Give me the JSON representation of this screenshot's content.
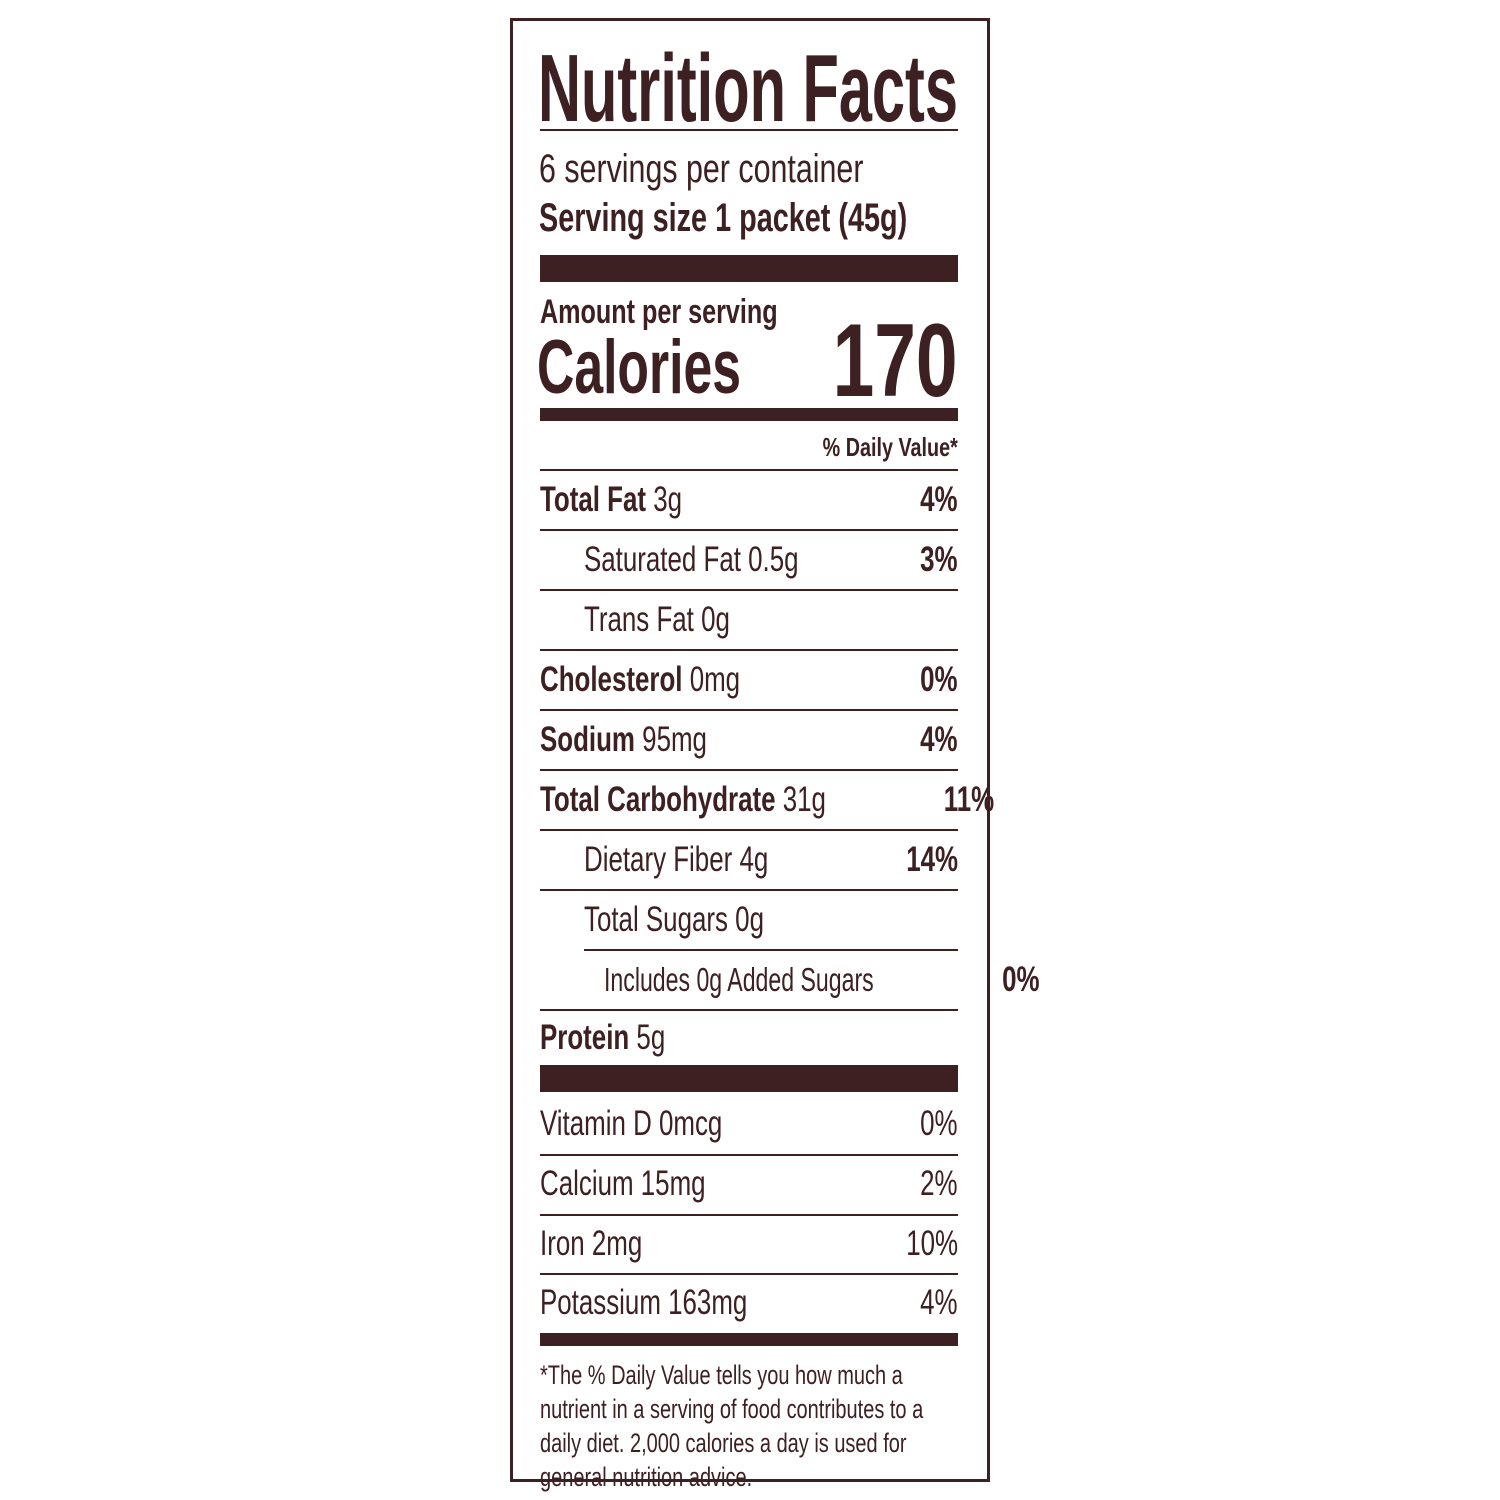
{
  "label": {
    "title": "Nutrition Facts",
    "servings_per_container": "6 servings per container",
    "serving_size_label": "Serving size",
    "serving_size_value": "1 packet (45g)",
    "amount_per_serving": "Amount per serving",
    "calories_label": "Calories",
    "calories_value": "170",
    "daily_value_header": "% Daily Value*",
    "nutrients": [
      {
        "name": "Total Fat",
        "amount": "3g",
        "dv": "4%"
      },
      {
        "name": "Saturated Fat",
        "amount": "0.5g",
        "dv": "3%"
      },
      {
        "name": "Trans Fat",
        "amount": "0g",
        "dv": ""
      },
      {
        "name": "Cholesterol",
        "amount": "0mg",
        "dv": "0%"
      },
      {
        "name": "Sodium",
        "amount": "95mg",
        "dv": "4%"
      },
      {
        "name": "Total Carbohydrate",
        "amount": "31g",
        "dv": "11%"
      },
      {
        "name": "Dietary Fiber",
        "amount": "4g",
        "dv": "14%"
      },
      {
        "name": "Total Sugars",
        "amount": "0g",
        "dv": ""
      },
      {
        "name": "Includes 0g Added Sugars",
        "amount": "",
        "dv": "0%"
      },
      {
        "name": "Protein",
        "amount": "5g",
        "dv": ""
      }
    ],
    "vitamins": [
      {
        "name": "Vitamin D",
        "amount": "0mcg",
        "dv": "0%"
      },
      {
        "name": "Calcium",
        "amount": "15mg",
        "dv": "2%"
      },
      {
        "name": "Iron",
        "amount": "2mg",
        "dv": "10%"
      },
      {
        "name": "Potassium",
        "amount": "163mg",
        "dv": "4%"
      }
    ],
    "footnote": "*The % Daily Value tells you how much a nutrient in a serving of food contributes to a daily diet. 2,000 calories a day is used for general nutrition advice.",
    "text_color": "#3d2022"
  }
}
